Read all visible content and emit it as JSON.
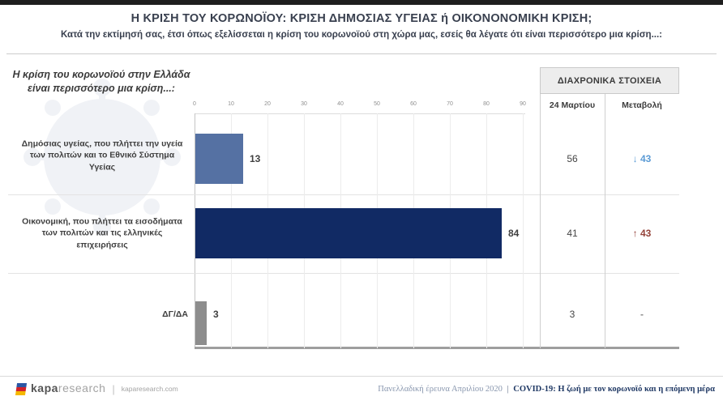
{
  "header": {
    "title": "Η ΚΡΙΣΗ ΤΟΥ ΚΟΡΩΝΟΪΟΥ: ΚΡΙΣΗ ΔΗΜΟΣΙΑΣ ΥΓΕΙΑΣ ή ΟΙΚΟΝΟΝΟΜΙΚΗ ΚΡΙΣΗ;",
    "subtitle": "Κατά την εκτίμησή σας, έτσι όπως εξελίσσεται η κρίση του κορωνοϊού στη χώρα μας, εσείς θα λέγατε ότι είναι περισσότερο μια κρίση...:"
  },
  "left_panel": {
    "intro": "Η κρίση του κορωνοϊού στην Ελλάδα είναι περισσότερο μια κρίση...:"
  },
  "chart_data": {
    "type": "bar",
    "orientation": "horizontal",
    "title": "",
    "xlabel": "",
    "ylabel": "",
    "categories": [
      "Δημόσιας υγείας, που πλήττει την υγεία των πολιτών και το Εθνικό Σύστημα Υγείας",
      "Οικονομική, που πλήττει τα εισοδήματα των πολιτών και τις ελληνικές επιχειρήσεις",
      "ΔΓ/ΔΑ"
    ],
    "values": [
      13,
      84,
      3
    ],
    "bar_colors": [
      "#5571a3",
      "#112a64",
      "#8d8d8d"
    ],
    "xlim": [
      0,
      90
    ],
    "x_ticks": [
      0,
      10,
      20,
      30,
      40,
      50,
      60,
      70,
      80,
      90
    ],
    "grid": true,
    "legend": false
  },
  "table": {
    "title": "ΔΙΑΧΡΟΝΙΚΑ ΣΤΟΙΧΕΙΑ",
    "columns": [
      "24 Μαρτίου",
      "Μεταβολή"
    ],
    "rows": [
      {
        "value": "56",
        "arrow": "↓",
        "change": "43",
        "direction": "down"
      },
      {
        "value": "41",
        "arrow": "↑",
        "change": "43",
        "direction": "up"
      },
      {
        "value": "3",
        "arrow": "",
        "change": "-",
        "direction": "none"
      }
    ]
  },
  "footer": {
    "brand_primary": "kapa",
    "brand_secondary": "research",
    "brand_domain": "kaparesearch.com",
    "source_left": "Πανελλαδική έρευνα Απριλίου 2020",
    "source_right": "COVID-19: Η ζωή με τον κορωνοϊό και η επόμενη μέρα"
  },
  "colors": {
    "accent_down": "#5b9bd5",
    "accent_up": "#94433a",
    "neutral_change": "#8a8a8a",
    "bar_health": "#5571a3",
    "bar_economy": "#112a64",
    "bar_dk": "#8d8d8d"
  }
}
